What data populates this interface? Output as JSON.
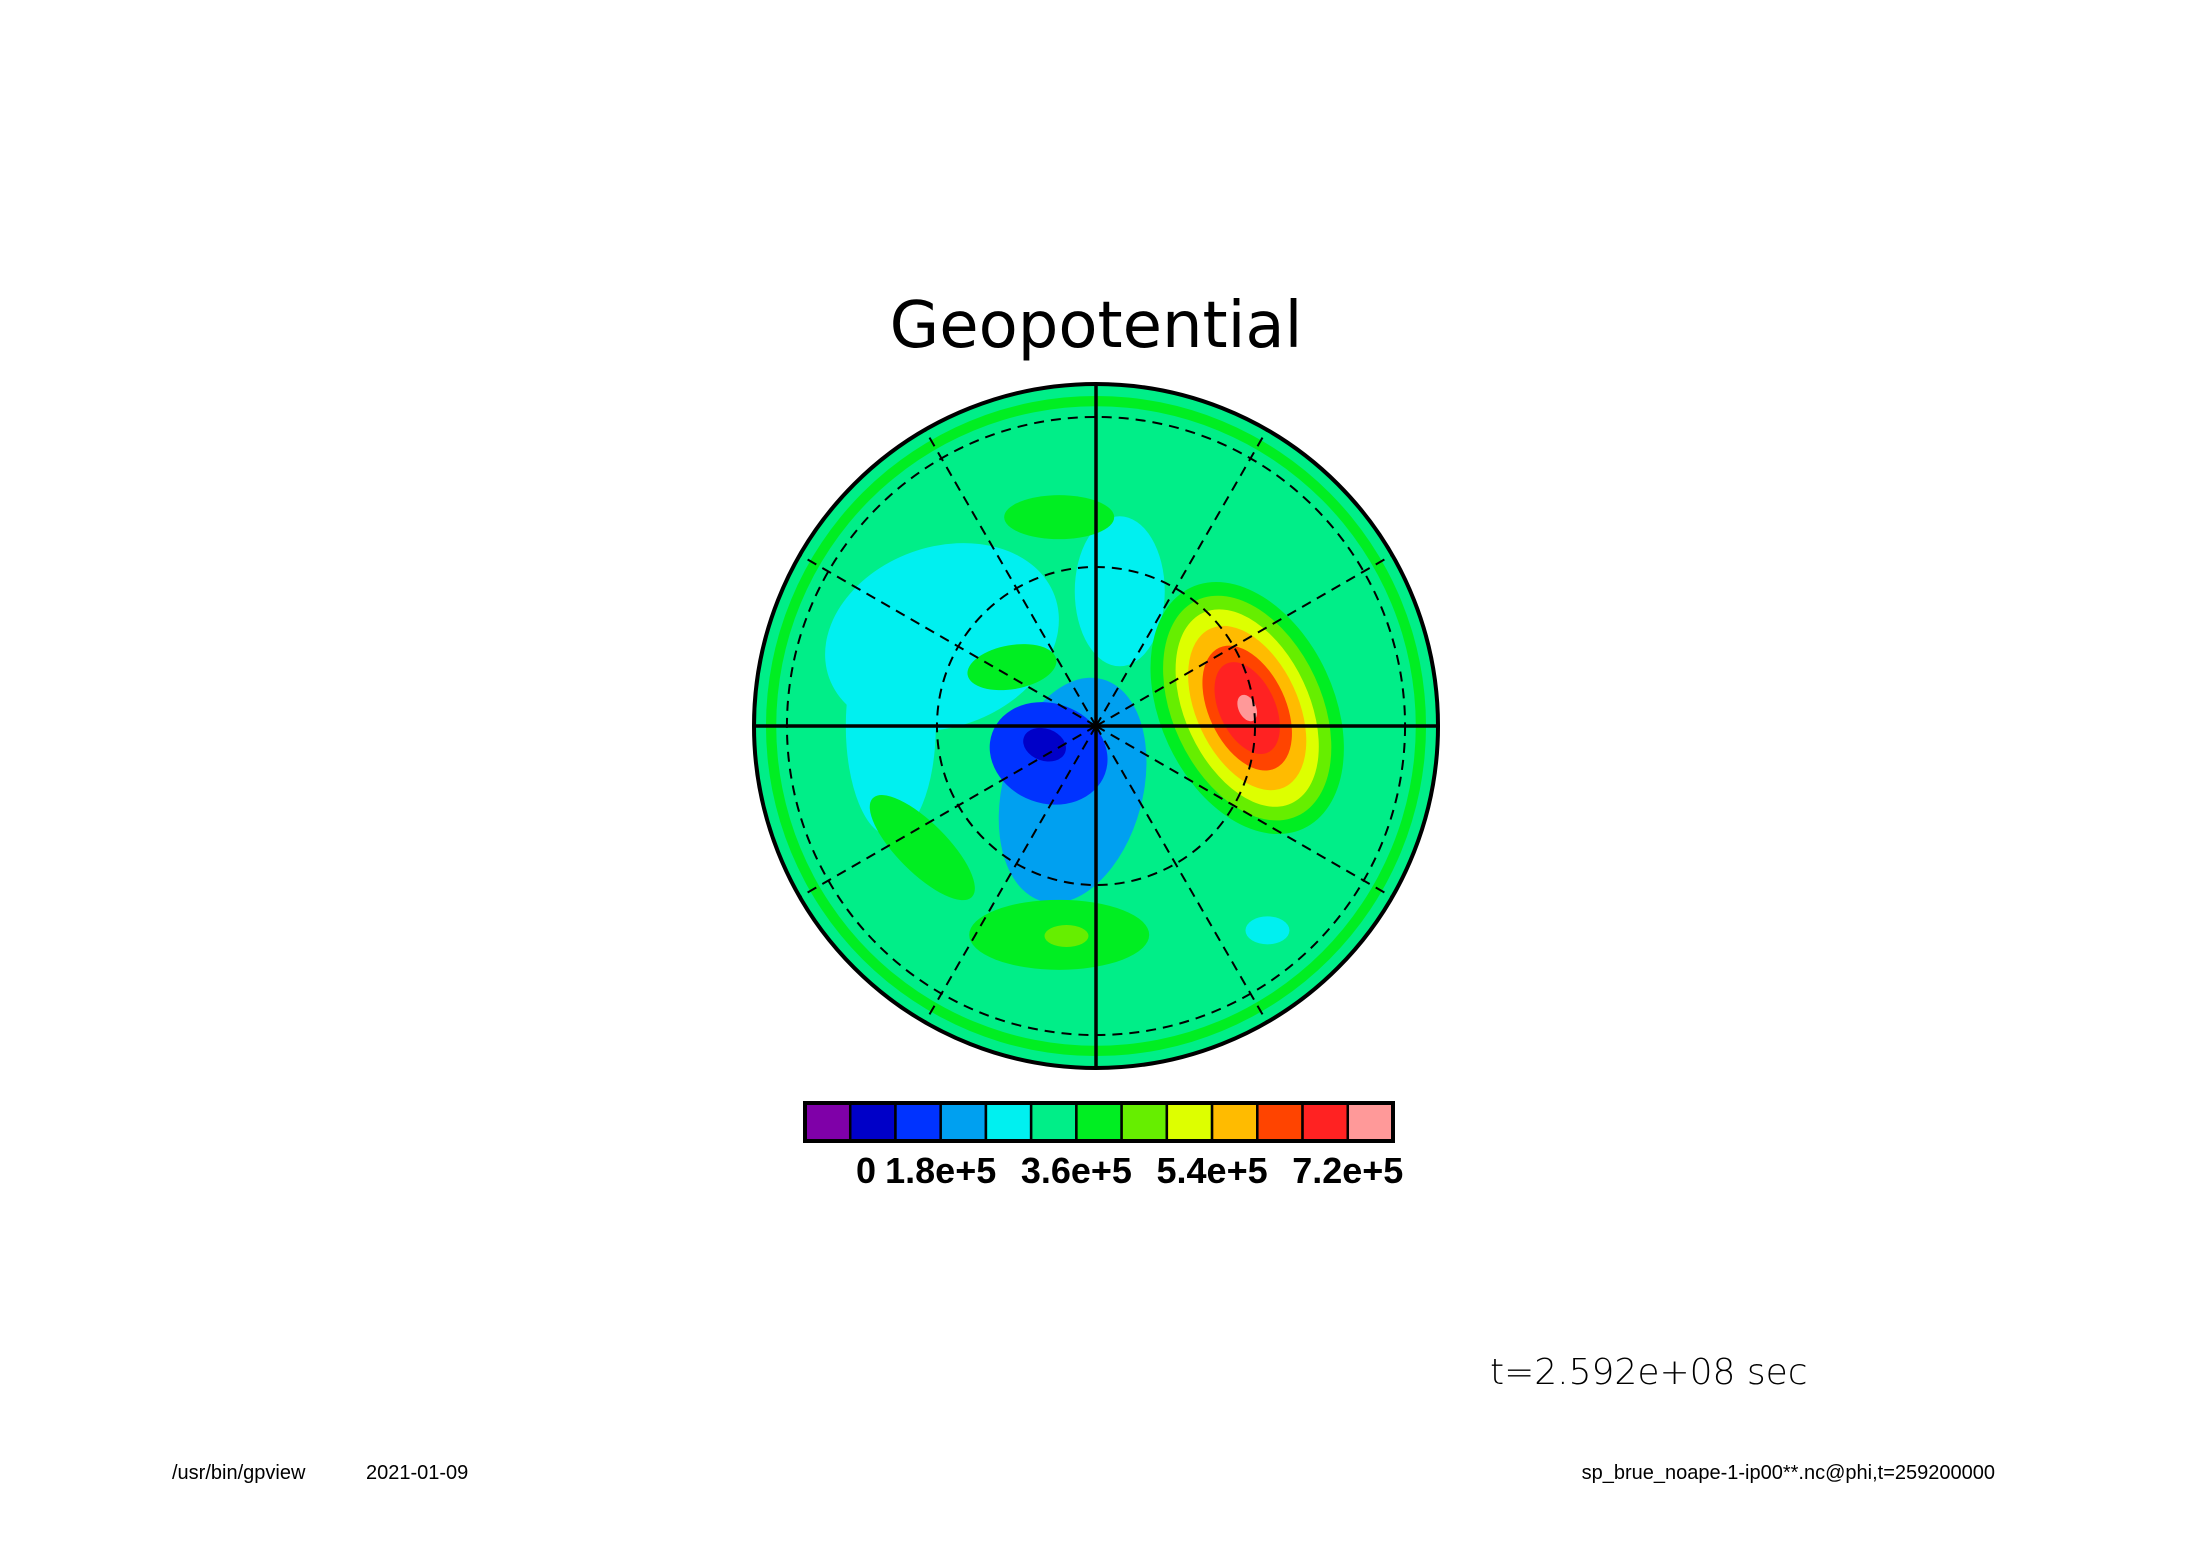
{
  "chart_data": {
    "type": "heatmap",
    "projection": "polar-stereographic",
    "title": "Geopotential",
    "colorbar": {
      "levels": [
        0,
        60000,
        120000,
        180000,
        240000,
        300000,
        360000,
        420000,
        480000,
        540000,
        600000,
        660000,
        720000,
        780000
      ],
      "colors": [
        "#7f00a8",
        "#0000c8",
        "#0033ff",
        "#00a0f0",
        "#00f0f0",
        "#00ee88",
        "#00ee22",
        "#66ee00",
        "#ddff00",
        "#ffbb00",
        "#ff4400",
        "#ff2222",
        "#ff9999"
      ],
      "tick_values": [
        0,
        180000,
        360000,
        540000,
        720000
      ],
      "tick_labels": [
        "0",
        "1.8e+5",
        "3.6e+5",
        "5.4e+5",
        "7.2e+5"
      ]
    },
    "features": [
      {
        "type": "high",
        "value": 760000,
        "lon_deg": 85,
        "colat_frac": 0.45
      },
      {
        "type": "low",
        "value": 90000,
        "lon_deg": 250,
        "colat_frac": 0.16
      },
      {
        "type": "background",
        "value": 330000
      }
    ],
    "grid": {
      "meridian_step_deg": 30,
      "circles": 2,
      "dashed": true
    }
  },
  "annotation": {
    "time": "t=2.592e+08 sec"
  },
  "footer": {
    "program": "/usr/bin/gpview",
    "date": "2021-01-09",
    "source": "sp_brue_noape-1-ip00**.nc@phi,t=259200000"
  }
}
